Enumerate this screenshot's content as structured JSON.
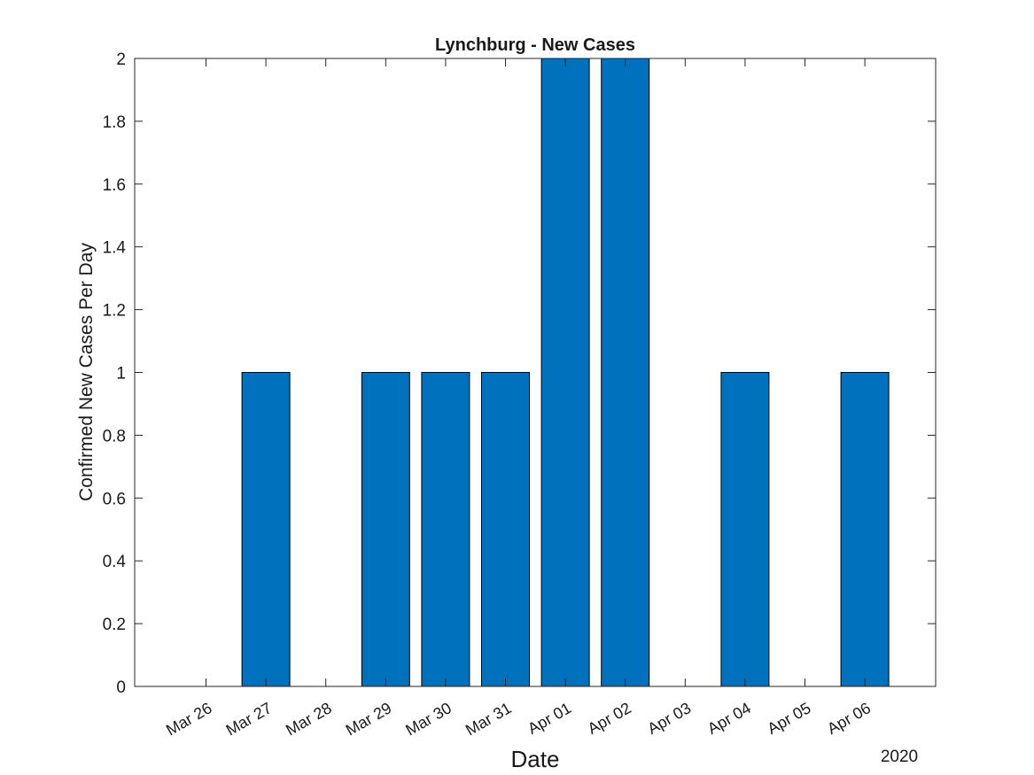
{
  "chart_data": {
    "type": "bar",
    "title": "Lynchburg - New Cases",
    "xlabel": "Date",
    "ylabel": "Confirmed New Cases Per Day",
    "x_year_label": "2020",
    "categories": [
      "Mar 26",
      "Mar 27",
      "Mar 28",
      "Mar 29",
      "Mar 30",
      "Mar 31",
      "Apr 01",
      "Apr 02",
      "Apr 03",
      "Apr 04",
      "Apr 05",
      "Apr 06"
    ],
    "values": [
      0,
      1,
      0,
      1,
      1,
      1,
      2,
      2,
      0,
      1,
      0,
      1
    ],
    "ylim": [
      0,
      2
    ],
    "yticks": [
      0,
      0.2,
      0.4,
      0.6,
      0.8,
      1,
      1.2,
      1.4,
      1.6,
      1.8,
      2
    ],
    "ytick_labels": [
      "0",
      "0.2",
      "0.4",
      "0.6",
      "0.8",
      "1",
      "1.2",
      "1.4",
      "1.6",
      "1.8",
      "2"
    ],
    "grid": false,
    "bar_color": "#0072bd",
    "bar_edge_color": "#000000"
  }
}
